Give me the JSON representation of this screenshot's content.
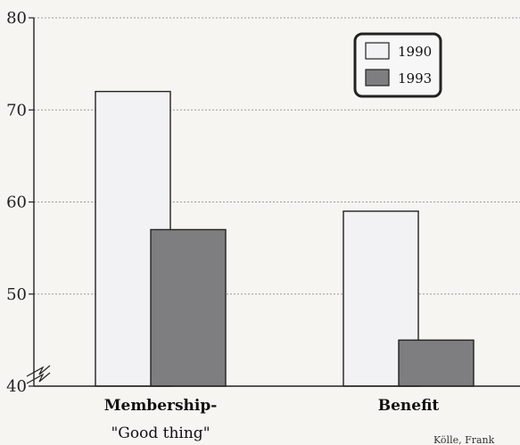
{
  "chart_data": {
    "type": "bar",
    "title": "",
    "xlabel": "",
    "ylabel": "",
    "categories": [
      "Membership-",
      "Benefit"
    ],
    "category_sublabels": [
      "\"Good thing\"",
      ""
    ],
    "series": [
      {
        "name": "1990",
        "values": [
          72,
          59
        ]
      },
      {
        "name": "1993",
        "values": [
          57,
          45
        ]
      }
    ],
    "ylim": [
      40,
      80
    ],
    "yticks": [
      40,
      50,
      60,
      70,
      80
    ],
    "grid": true,
    "axis_break": true,
    "legend_position": "top-right",
    "colors": {
      "1990": "#f2f2f4",
      "1993": "#7e7e80"
    }
  },
  "credit": "Kölle, Frank"
}
